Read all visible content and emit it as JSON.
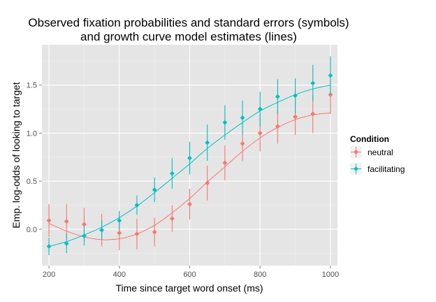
{
  "chart_data": {
    "type": "line",
    "title_line1": "Observed fixation probabilities and standard errors (symbols)",
    "title_line2": "and growth curve model estimates (lines)",
    "xlabel": "Time since target word onset (ms)",
    "ylabel": "Emp. log-odds of looking to target",
    "xlim": [
      180,
      1020
    ],
    "ylim": [
      -0.38,
      1.92
    ],
    "x_ticks": [
      200,
      400,
      600,
      800,
      1000
    ],
    "y_ticks": [
      0.0,
      0.5,
      1.0,
      1.5
    ],
    "y_tick_labels": [
      "0.0",
      "0.5",
      "1.0",
      "1.5"
    ],
    "grid": true,
    "legend_title": "Condition",
    "legend_position": "right",
    "x": [
      200,
      250,
      300,
      350,
      400,
      450,
      500,
      550,
      600,
      650,
      700,
      750,
      800,
      850,
      900,
      950,
      1000
    ],
    "series": [
      {
        "name": "neutral",
        "color": "#F8766D",
        "observed": [
          0.09,
          0.08,
          0.05,
          -0.01,
          -0.04,
          -0.05,
          -0.03,
          0.11,
          0.26,
          0.48,
          0.69,
          0.89,
          1.0,
          1.07,
          1.17,
          1.2,
          1.4
        ],
        "se": [
          0.17,
          0.18,
          0.17,
          0.17,
          0.18,
          0.16,
          0.15,
          0.14,
          0.16,
          0.18,
          0.18,
          0.18,
          0.19,
          0.18,
          0.19,
          0.2,
          0.2
        ],
        "fitted": [
          0.06,
          -0.02,
          -0.08,
          -0.11,
          -0.1,
          -0.05,
          0.04,
          0.17,
          0.32,
          0.49,
          0.65,
          0.81,
          0.95,
          1.06,
          1.14,
          1.19,
          1.21
        ]
      },
      {
        "name": "facilitating",
        "color": "#00BFC4",
        "observed": [
          -0.18,
          -0.15,
          -0.07,
          -0.01,
          0.09,
          0.25,
          0.41,
          0.58,
          0.74,
          0.9,
          1.11,
          1.16,
          1.25,
          1.38,
          1.39,
          1.52,
          1.6
        ],
        "se": [
          0.09,
          0.1,
          0.1,
          0.1,
          0.1,
          0.1,
          0.13,
          0.16,
          0.17,
          0.19,
          0.18,
          0.18,
          0.18,
          0.18,
          0.18,
          0.19,
          0.2
        ],
        "fitted": [
          -0.18,
          -0.13,
          -0.06,
          0.02,
          0.12,
          0.24,
          0.38,
          0.53,
          0.68,
          0.84,
          0.98,
          1.11,
          1.23,
          1.32,
          1.4,
          1.46,
          1.5
        ]
      }
    ]
  }
}
